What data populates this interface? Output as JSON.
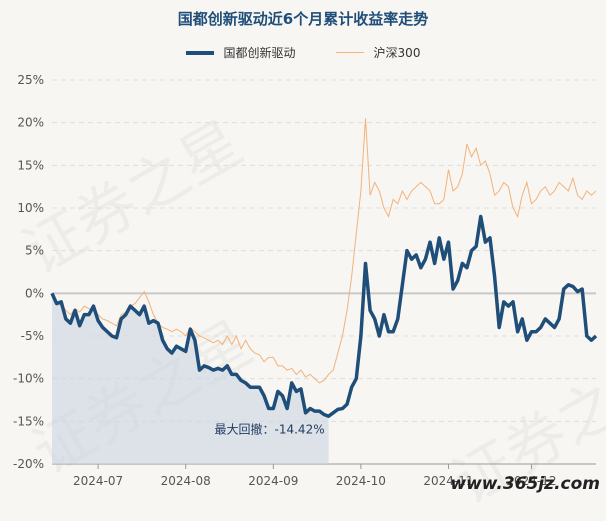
{
  "chart_data": {
    "type": "line",
    "title": "国都创新驱动近6个月累计收益率走势",
    "y_ticks": [
      "25%",
      "20%",
      "15%",
      "10%",
      "5%",
      "0%",
      "-5%",
      "-10%",
      "-15%",
      "-20%"
    ],
    "y_tick_values": [
      25,
      20,
      15,
      10,
      5,
      0,
      -5,
      -10,
      -15,
      -20
    ],
    "ylim": [
      -20,
      25
    ],
    "x_ticks": [
      "2024-07",
      "2024-08",
      "2024-09",
      "2024-10",
      "2024-11",
      "2024-12"
    ],
    "x_tick_index": [
      10,
      29,
      48,
      67,
      86,
      104
    ],
    "grid": "horizontal",
    "legend_position": "top-center",
    "colors": {
      "fund": "#1f4e79",
      "index": "#f2b27a",
      "drawdown_fill": "#cdd7e2"
    },
    "series": [
      {
        "name": "国都创新驱动",
        "values": [
          0,
          -1.2,
          -1,
          -3,
          -3.5,
          -2,
          -3.8,
          -2.5,
          -2.5,
          -1.5,
          -3.2,
          -4,
          -4.5,
          -5,
          -5.2,
          -3,
          -2.5,
          -1.5,
          -2,
          -2.5,
          -1.5,
          -3.5,
          -3.2,
          -3.5,
          -5.5,
          -6.5,
          -7,
          -6.2,
          -6.5,
          -6.8,
          -4.2,
          -5.5,
          -9,
          -8.5,
          -8.7,
          -9,
          -8.8,
          -9,
          -8.5,
          -9.5,
          -9.5,
          -10.2,
          -10.5,
          -11,
          -11,
          -11,
          -12,
          -13.5,
          -13.5,
          -11.5,
          -12,
          -13.5,
          -10.5,
          -11.5,
          -11.2,
          -14,
          -13.5,
          -13.8,
          -13.8,
          -14.2,
          -14.4,
          -14.0,
          -13.6,
          -13.5,
          -13.0,
          -11.0,
          -10.0,
          -5.0,
          3.5,
          -2.0,
          -3.0,
          -5.0,
          -2.5,
          -4.5,
          -4.5,
          -3.0,
          1.0,
          5.0,
          4.0,
          4.5,
          3.0,
          4.0,
          6.0,
          3.5,
          6.5,
          4.0,
          6.0,
          0.5,
          1.5,
          3.5,
          3.0,
          5.0,
          5.5,
          9.0,
          6.0,
          6.5,
          2.0,
          -4.0,
          -1.0,
          -1.5,
          -1.0,
          -4.5,
          -3.0,
          -5.5,
          -4.5,
          -4.5,
          -4.0,
          -3.0,
          -3.5,
          -4.0,
          -3.0,
          0.5,
          1.0,
          0.8,
          0.2,
          0.5,
          -5.0,
          -5.5,
          -5.0
        ],
        "color": "#1f4e79"
      },
      {
        "name": "沪深300",
        "values": [
          0,
          -1,
          -1.5,
          -2,
          -2.5,
          -1.8,
          -2.2,
          -1.5,
          -1.8,
          -2,
          -2.5,
          -3,
          -3.2,
          -3.5,
          -3.8,
          -2.5,
          -2.2,
          -1.5,
          -1.2,
          -0.5,
          0.2,
          -1,
          -2.5,
          -3.5,
          -4,
          -4.2,
          -4.5,
          -4.2,
          -4.5,
          -5,
          -4,
          -4.5,
          -5,
          -5.2,
          -5.5,
          -5.8,
          -5.5,
          -6,
          -5,
          -6,
          -5,
          -6.5,
          -5.5,
          -6.5,
          -7,
          -7.2,
          -8,
          -7.5,
          -7.5,
          -8.5,
          -8.5,
          -9,
          -8.8,
          -9.5,
          -9,
          -9.8,
          -9.5,
          -10,
          -10.5,
          -10.2,
          -9.5,
          -9,
          -7,
          -5,
          -2,
          2,
          7,
          12,
          20.5,
          11.5,
          13,
          12,
          10,
          9,
          11,
          10.5,
          12,
          11,
          12,
          12.5,
          13,
          12.5,
          12,
          10.5,
          10.5,
          11,
          14.5,
          12,
          12.5,
          14,
          17.5,
          16,
          17,
          15,
          15.5,
          14,
          11.5,
          12,
          13,
          12.5,
          10,
          9,
          11.5,
          13,
          10.5,
          11,
          12,
          12.5,
          11.5,
          12,
          13,
          12.5,
          12,
          13.5,
          11.5,
          11,
          12,
          11.5,
          12
        ],
        "color": "#f2b27a"
      }
    ],
    "annotations": [
      {
        "text": "最大回撤：-14.42%",
        "from_index": 0,
        "to_index": 60,
        "value": -14.42
      }
    ]
  },
  "watermark": "证券之星",
  "site_label": "www.365jz.com"
}
